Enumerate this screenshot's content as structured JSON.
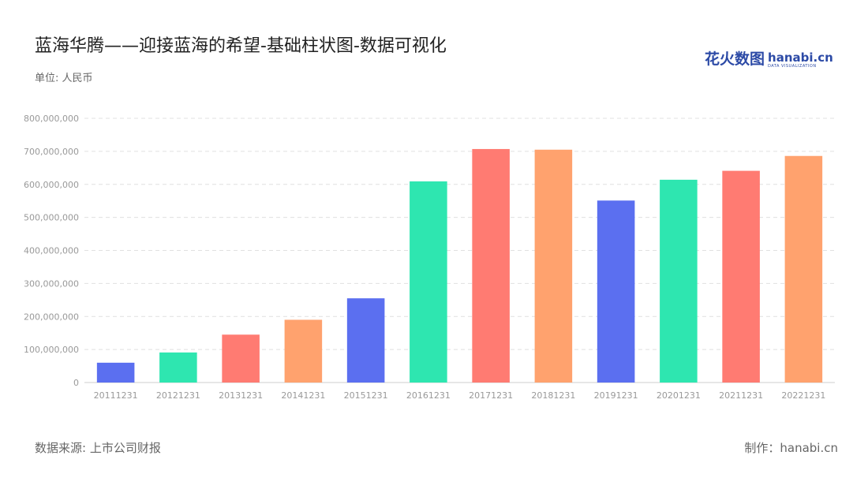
{
  "header": {
    "title": "蓝海华腾——迎接蓝海的希望-基础柱状图-数据可视化",
    "unit": "单位: 人民币"
  },
  "footer": {
    "source": "数据来源: 上市公司财报",
    "credit": "制作：hanabi.cn"
  },
  "logo": {
    "cn": "花火数图",
    "en": "hanabi.cn",
    "en_sub": "DATA VISUALIZATION"
  },
  "colors": {
    "palette": [
      "#5b6ff0",
      "#2ee6b0",
      "#ff7b72",
      "#ffa26e"
    ],
    "grid": "#e0e0e0",
    "axis": "#cccccc"
  },
  "chart_data": {
    "type": "bar",
    "categories": [
      "20111231",
      "20121231",
      "20131231",
      "20141231",
      "20151231",
      "20161231",
      "20171231",
      "20181231",
      "20191231",
      "20201231",
      "20211231",
      "20221231"
    ],
    "values": [
      60000000,
      91000000,
      145000000,
      190000000,
      255000000,
      609000000,
      707000000,
      705000000,
      551000000,
      614000000,
      641000000,
      686000000
    ],
    "ylim": [
      0,
      800000000
    ],
    "yticks": [
      "0",
      "100,000,000",
      "200,000,000",
      "300,000,000",
      "400,000,000",
      "500,000,000",
      "600,000,000",
      "700,000,000",
      "800,000,000"
    ],
    "grid": true,
    "legend": "none"
  }
}
